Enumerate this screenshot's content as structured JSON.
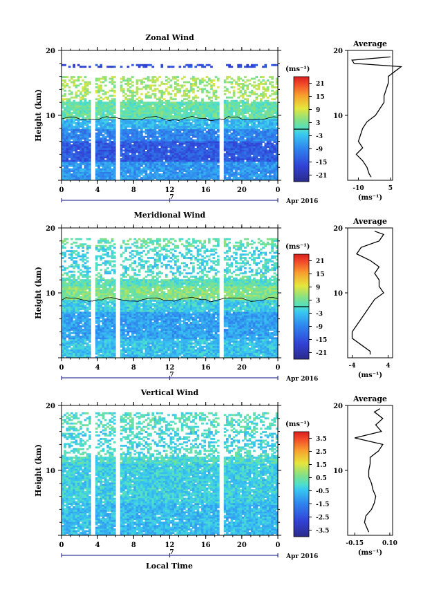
{
  "xlabel": "Local Time",
  "date_label": "Apr 2016",
  "day_label": "7",
  "x_ticks": [
    "0",
    "4",
    "8",
    "12",
    "16",
    "20",
    "0"
  ],
  "y_label": "Height (km)",
  "y_ticks": [
    "10",
    "20"
  ],
  "units_label": "(ms⁻¹)",
  "avg_title": "Average",
  "avg_xunit": "(ms⁻¹)",
  "panels": [
    {
      "title": "Zonal Wind",
      "colorbar_ticks": [
        "21",
        "15",
        "9",
        "3",
        "-3",
        "-9",
        "-15",
        "-21"
      ],
      "avg_xticks": [
        "-10",
        "5"
      ]
    },
    {
      "title": "Meridional Wind",
      "colorbar_ticks": [
        "21",
        "15",
        "9",
        "3",
        "-3",
        "-9",
        "-15",
        "-21"
      ],
      "avg_xticks": [
        "-4",
        "4"
      ]
    },
    {
      "title": "Vertical Wind",
      "colorbar_ticks": [
        "3.5",
        "2.5",
        "1.5",
        "0.5",
        "-0.5",
        "-1.5",
        "-2.5",
        "-3.5"
      ],
      "avg_xticks": [
        "-0.15",
        "0.10"
      ]
    }
  ],
  "chart_data": [
    {
      "type": "heatmap",
      "title": "Zonal Wind",
      "xlabel": "",
      "ylabel": "Height (km)",
      "xlim": [
        0,
        24
      ],
      "ylim": [
        0,
        20
      ],
      "x_tick_values": [
        0,
        4,
        8,
        12,
        16,
        20,
        24
      ],
      "y_tick_values": [
        10,
        20
      ],
      "colorbar_range": [
        -24,
        24
      ],
      "colorbar_ticks": [
        21,
        15,
        9,
        3,
        -3,
        -9,
        -15,
        -21
      ],
      "zero_contour": true,
      "data_gaps_hours": [
        [
          3.3,
          3.8
        ],
        [
          6.1,
          6.6
        ],
        [
          17.6,
          18.0
        ]
      ],
      "layers": [
        {
          "height_range": [
            0,
            3
          ],
          "value": -7
        },
        {
          "height_range": [
            3,
            6
          ],
          "value": -14
        },
        {
          "height_range": [
            6,
            8
          ],
          "value": -9
        },
        {
          "height_range": [
            8,
            9.5
          ],
          "value": -4
        },
        {
          "height_range": [
            9.5,
            12.5
          ],
          "value": 2
        },
        {
          "height_range": [
            12.5,
            16
          ],
          "value": 6
        },
        {
          "height_range": [
            17.5,
            18
          ],
          "value": -16
        }
      ],
      "average_profile": {
        "xlim": [
          -15,
          6
        ],
        "x_tick_values": [
          -10,
          5
        ],
        "height": [
          0.5,
          1,
          2,
          3,
          4,
          5,
          6,
          7,
          8,
          9,
          10,
          11,
          12,
          13,
          14,
          15,
          16,
          17,
          17.5,
          18,
          18.5,
          19
        ],
        "value": [
          -4,
          -5,
          -6,
          -8,
          -11,
          -8,
          -10,
          -9,
          -8,
          -6,
          -2,
          0,
          2,
          2,
          3,
          4,
          4,
          8,
          10,
          -12,
          -13,
          5
        ]
      }
    },
    {
      "type": "heatmap",
      "title": "Meridional Wind",
      "xlabel": "",
      "ylabel": "Height (km)",
      "xlim": [
        0,
        24
      ],
      "ylim": [
        0,
        20
      ],
      "x_tick_values": [
        0,
        4,
        8,
        12,
        16,
        20,
        24
      ],
      "y_tick_values": [
        10,
        20
      ],
      "colorbar_range": [
        -24,
        24
      ],
      "colorbar_ticks": [
        21,
        15,
        9,
        3,
        -3,
        -9,
        -15,
        -21
      ],
      "zero_contour": true,
      "data_gaps_hours": [
        [
          3.3,
          3.8
        ],
        [
          6.1,
          6.6
        ],
        [
          17.6,
          18.0
        ]
      ],
      "layers": [
        {
          "height_range": [
            0,
            3
          ],
          "value": -3
        },
        {
          "height_range": [
            3,
            7
          ],
          "value": -6
        },
        {
          "height_range": [
            7,
            9
          ],
          "value": -2
        },
        {
          "height_range": [
            9,
            11
          ],
          "value": 4
        },
        {
          "height_range": [
            11,
            13
          ],
          "value": 1
        },
        {
          "height_range": [
            13,
            17
          ],
          "value": -1
        },
        {
          "height_range": [
            17,
            18.5
          ],
          "value": 2
        }
      ],
      "average_profile": {
        "xlim": [
          -5,
          5
        ],
        "x_tick_values": [
          -4,
          4
        ],
        "height": [
          0.5,
          1,
          2,
          3,
          4,
          5,
          6,
          7,
          8,
          9,
          10,
          11,
          12,
          13,
          14,
          15,
          16,
          17,
          18,
          19,
          19.5
        ],
        "value": [
          0,
          0,
          -2,
          -4,
          -4,
          -3,
          -2,
          -1,
          0,
          1,
          3,
          2,
          2,
          1,
          2,
          0,
          -3,
          -2,
          2,
          3,
          1
        ]
      }
    },
    {
      "type": "heatmap",
      "title": "Vertical Wind",
      "xlabel": "Local Time",
      "ylabel": "Height (km)",
      "xlim": [
        0,
        24
      ],
      "ylim": [
        0,
        20
      ],
      "x_tick_values": [
        0,
        4,
        8,
        12,
        16,
        20,
        24
      ],
      "y_tick_values": [
        10,
        20
      ],
      "colorbar_range": [
        -4,
        4
      ],
      "colorbar_ticks": [
        3.5,
        2.5,
        1.5,
        0.5,
        -0.5,
        -1.5,
        -2.5,
        -3.5
      ],
      "zero_contour": false,
      "data_gaps_hours": [
        [
          3.3,
          3.8
        ],
        [
          6.1,
          6.6
        ],
        [
          17.6,
          18.0
        ]
      ],
      "layers": [
        {
          "height_range": [
            0,
            5
          ],
          "value": -0.6
        },
        {
          "height_range": [
            5,
            11
          ],
          "value": -0.3
        },
        {
          "height_range": [
            11,
            13.5
          ],
          "value": 0
        },
        {
          "height_range": [
            13.5,
            16
          ],
          "value": -0.2
        },
        {
          "height_range": [
            16,
            19
          ],
          "value": 0.1
        }
      ],
      "average_profile": {
        "xlim": [
          -0.2,
          0.12
        ],
        "x_tick_values": [
          -0.15,
          0.1
        ],
        "height": [
          0.5,
          1,
          2,
          3,
          4,
          5,
          6,
          7,
          8,
          9,
          10,
          11,
          12,
          13,
          14,
          15,
          16,
          17,
          18,
          19,
          19.5
        ],
        "value": [
          -0.05,
          -0.06,
          -0.08,
          -0.07,
          -0.03,
          -0.01,
          0.0,
          -0.02,
          -0.03,
          -0.05,
          -0.05,
          -0.04,
          -0.04,
          0.02,
          0.05,
          -0.15,
          0.04,
          0.0,
          0.05,
          -0.01,
          0.03
        ]
      }
    }
  ]
}
